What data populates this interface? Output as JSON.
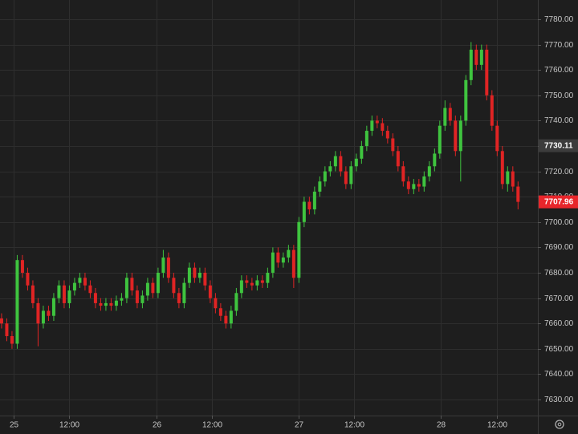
{
  "chart_data": {
    "type": "candlestick",
    "up_color": "#3fc43f",
    "down_color": "#e02424",
    "grid": true,
    "xlim": [
      -0.3,
      102.8
    ],
    "xticks": [
      {
        "value": 2.3,
        "label": "25"
      },
      {
        "value": 12.9,
        "label": "12:00"
      },
      {
        "value": 29.7,
        "label": "26"
      },
      {
        "value": 40.3,
        "label": "12:00"
      },
      {
        "value": 56.9,
        "label": "27"
      },
      {
        "value": 67.5,
        "label": "12:00"
      },
      {
        "value": 84.2,
        "label": "28"
      },
      {
        "value": 95,
        "label": "12:00"
      }
    ],
    "ylim": [
      7623.67,
      7787.59
    ],
    "yticks": [
      {
        "value": 7630,
        "label": "7630.00"
      },
      {
        "value": 7640,
        "label": "7640.00"
      },
      {
        "value": 7650,
        "label": "7650.00"
      },
      {
        "value": 7660,
        "label": "7660.00"
      },
      {
        "value": 7670,
        "label": "7670.00"
      },
      {
        "value": 7680,
        "label": "7680.00"
      },
      {
        "value": 7690,
        "label": "7690.00"
      },
      {
        "value": 7700,
        "label": "7700.00"
      },
      {
        "value": 7710,
        "label": "7710.00"
      },
      {
        "value": 7720,
        "label": "7720.00"
      },
      {
        "value": 7730,
        "label": "7730.00"
      },
      {
        "value": 7740,
        "label": "7740.00"
      },
      {
        "value": 7750,
        "label": "7750.00"
      },
      {
        "value": 7760,
        "label": "7760.00"
      },
      {
        "value": 7770,
        "label": "7770.00"
      },
      {
        "value": 7780,
        "label": "7780.00"
      }
    ],
    "price_markers": [
      {
        "value": 7730.11,
        "color": "#3c3c3c"
      },
      {
        "value": 7707.96,
        "color": "#e8262b"
      }
    ],
    "open": [
      7662,
      7660,
      7655,
      7652,
      7685,
      7680,
      7675,
      7668,
      7660,
      7665,
      7663,
      7670,
      7675,
      7668,
      7673,
      7676,
      7678,
      7675,
      7672,
      7668,
      7667,
      7668,
      7667,
      7669,
      7670,
      7678,
      7673,
      7668,
      7671,
      7676,
      7672,
      7680,
      7686,
      7678,
      7672,
      7668,
      7676,
      7682,
      7678,
      7680,
      7675,
      7670,
      7666,
      7663,
      7660,
      7665,
      7672,
      7677,
      7676,
      7675,
      7677,
      7676,
      7680,
      7688,
      7684,
      7686,
      7689,
      7678,
      7700,
      7708,
      7705,
      7712,
      7716,
      7720,
      7722,
      7726,
      7720,
      7715,
      7722,
      7725,
      7730,
      7736,
      7740,
      7739,
      7736,
      7733,
      7728,
      7722,
      7716,
      7713,
      7715,
      7714,
      7718,
      7722,
      7727,
      7738,
      7745,
      7740,
      7728,
      7740,
      7756,
      7768,
      7762,
      7768,
      7750,
      7738,
      7728,
      7715,
      7720,
      7714
    ],
    "high": [
      7664,
      7662,
      7657,
      7687,
      7687,
      7682,
      7677,
      7670,
      7667,
      7667,
      7672,
      7677,
      7677,
      7675,
      7678,
      7680,
      7680,
      7677,
      7674,
      7670,
      7670,
      7670,
      7671,
      7672,
      7680,
      7680,
      7675,
      7673,
      7678,
      7678,
      7682,
      7689,
      7688,
      7680,
      7674,
      7678,
      7684,
      7684,
      7682,
      7682,
      7677,
      7672,
      7668,
      7665,
      7667,
      7674,
      7679,
      7679,
      7678,
      7679,
      7679,
      7682,
      7690,
      7690,
      7688,
      7691,
      7691,
      7702,
      7710,
      7710,
      7714,
      7718,
      7722,
      7724,
      7728,
      7728,
      7722,
      7724,
      7727,
      7732,
      7738,
      7742,
      7742,
      7741,
      7738,
      7735,
      7730,
      7724,
      7718,
      7717,
      7717,
      7720,
      7724,
      7729,
      7740,
      7748,
      7747,
      7742,
      7742,
      7758,
      7771,
      7770,
      7770,
      7770,
      7752,
      7740,
      7730,
      7722,
      7722,
      7716
    ],
    "low": [
      7658,
      7653,
      7650,
      7650,
      7678,
      7673,
      7666,
      7651,
      7658,
      7661,
      7661,
      7668,
      7666,
      7666,
      7671,
      7674,
      7673,
      7670,
      7666,
      7665,
      7665,
      7665,
      7665,
      7667,
      7668,
      7671,
      7666,
      7666,
      7669,
      7670,
      7670,
      7678,
      7676,
      7670,
      7666,
      7666,
      7674,
      7676,
      7676,
      7673,
      7668,
      7664,
      7661,
      7658,
      7658,
      7663,
      7670,
      7674,
      7673,
      7673,
      7674,
      7674,
      7678,
      7682,
      7682,
      7684,
      7674,
      7676,
      7698,
      7703,
      7703,
      7710,
      7714,
      7718,
      7720,
      7718,
      7713,
      7713,
      7720,
      7723,
      7728,
      7734,
      7737,
      7734,
      7731,
      7726,
      7720,
      7714,
      7711,
      7711,
      7712,
      7712,
      7716,
      7720,
      7725,
      7736,
      7738,
      7726,
      7716,
      7738,
      7754,
      7760,
      7760,
      7748,
      7736,
      7726,
      7713,
      7712,
      7712,
      7705
    ],
    "close": [
      7660,
      7655,
      7652,
      7685,
      7680,
      7675,
      7668,
      7660,
      7665,
      7663,
      7670,
      7675,
      7668,
      7673,
      7676,
      7678,
      7675,
      7672,
      7668,
      7667,
      7668,
      7667,
      7669,
      7670,
      7678,
      7673,
      7668,
      7671,
      7676,
      7672,
      7680,
      7686,
      7678,
      7672,
      7668,
      7676,
      7682,
      7678,
      7680,
      7675,
      7670,
      7666,
      7663,
      7660,
      7665,
      7672,
      7677,
      7676,
      7675,
      7677,
      7676,
      7680,
      7688,
      7684,
      7686,
      7689,
      7678,
      7700,
      7708,
      7705,
      7712,
      7716,
      7720,
      7722,
      7726,
      7720,
      7715,
      7722,
      7725,
      7730,
      7736,
      7740,
      7739,
      7736,
      7733,
      7728,
      7722,
      7716,
      7713,
      7715,
      7714,
      7718,
      7722,
      7727,
      7738,
      7745,
      7740,
      7728,
      7740,
      7756,
      7768,
      7762,
      7768,
      7750,
      7738,
      7728,
      7715,
      7720,
      7714,
      7707.96
    ]
  }
}
